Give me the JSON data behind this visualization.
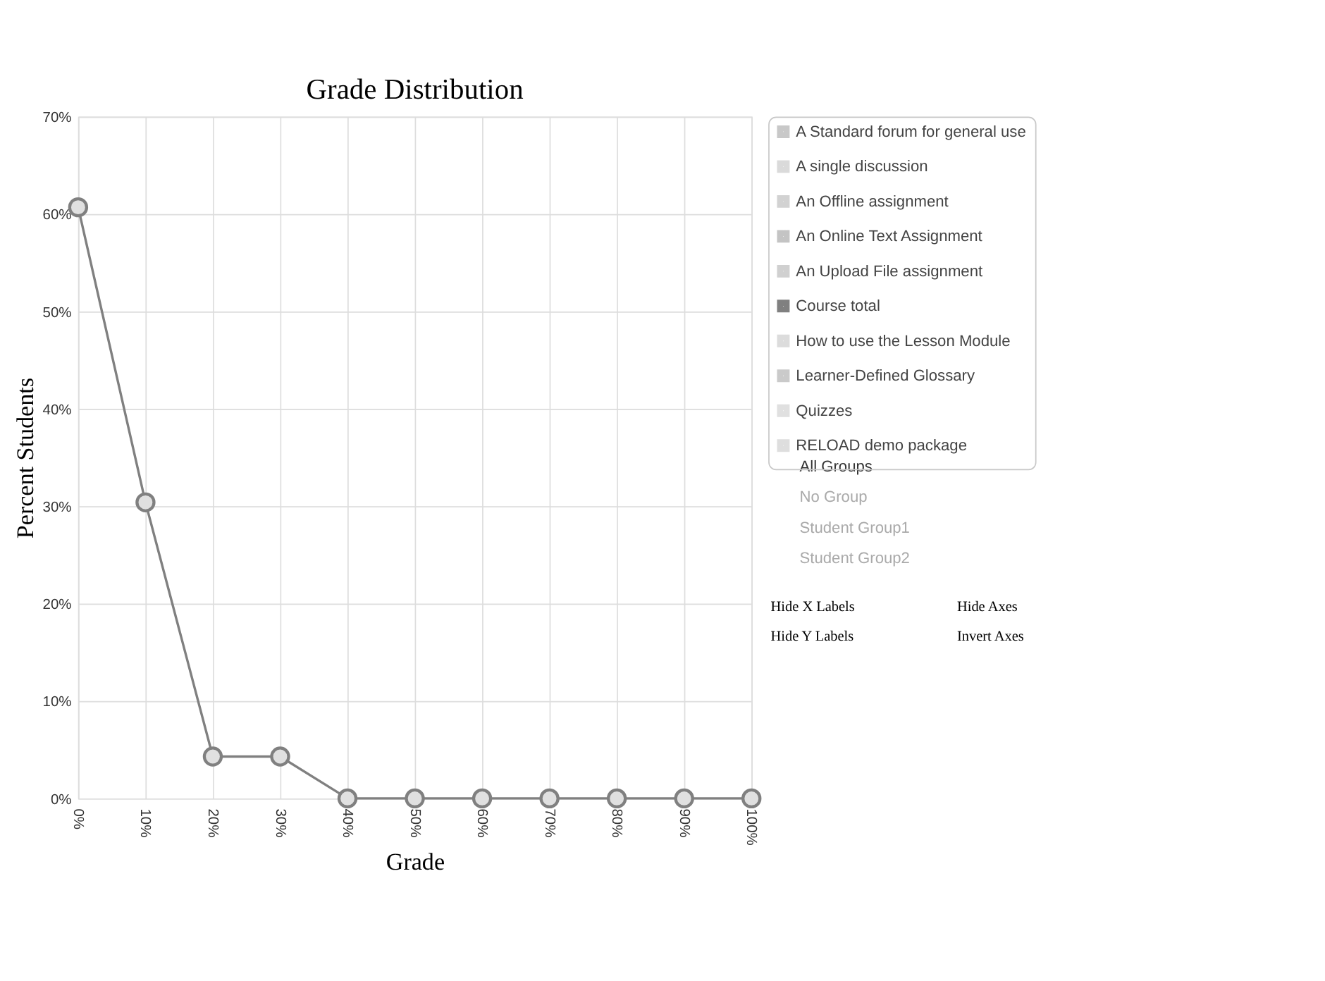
{
  "chart_data": {
    "type": "line",
    "title": "Grade Distribution",
    "xlabel": "Grade",
    "ylabel": "Percent Students",
    "categories": [
      "0%",
      "10%",
      "20%",
      "30%",
      "40%",
      "50%",
      "60%",
      "70%",
      "80%",
      "90%",
      "100%"
    ],
    "series": [
      {
        "name": "A Standard forum for general use",
        "color": "#c8c8c8",
        "values": [
          null,
          null,
          null,
          null,
          null,
          null,
          null,
          null,
          null,
          null,
          null
        ]
      },
      {
        "name": "A single discussion",
        "color": "#dadada",
        "values": [
          null,
          null,
          null,
          null,
          null,
          null,
          null,
          null,
          null,
          null,
          null
        ]
      },
      {
        "name": "An Offline assignment",
        "color": "#d2d2d2",
        "values": [
          null,
          null,
          null,
          null,
          null,
          null,
          null,
          null,
          null,
          null,
          null
        ]
      },
      {
        "name": "An Online Text Assignment",
        "color": "#c4c4c4",
        "values": [
          null,
          null,
          null,
          null,
          null,
          null,
          null,
          null,
          null,
          null,
          null
        ]
      },
      {
        "name": "An Upload File assignment",
        "color": "#d0d0d0",
        "values": [
          null,
          null,
          null,
          null,
          null,
          null,
          null,
          null,
          null,
          null,
          null
        ]
      },
      {
        "name": "Course total",
        "color": "#808080",
        "values": [
          60.7,
          30.4,
          4.3,
          4.3,
          0,
          0,
          0,
          0,
          0,
          0,
          0
        ]
      },
      {
        "name": "How to use the Lesson Module",
        "color": "#dcdcdc",
        "values": [
          null,
          null,
          null,
          null,
          null,
          null,
          null,
          null,
          null,
          null,
          null
        ]
      },
      {
        "name": "Learner-Defined Glossary",
        "color": "#cacaca",
        "values": [
          null,
          null,
          null,
          null,
          null,
          null,
          null,
          null,
          null,
          null,
          null
        ]
      },
      {
        "name": "Quizzes",
        "color": "#e0e0e0",
        "values": [
          null,
          null,
          null,
          null,
          null,
          null,
          null,
          null,
          null,
          null,
          null
        ]
      },
      {
        "name": "RELOAD demo package",
        "color": "#dedede",
        "values": [
          null,
          null,
          null,
          null,
          null,
          null,
          null,
          null,
          null,
          null,
          null
        ]
      }
    ],
    "ylim": [
      0,
      70
    ],
    "yticks": [
      {
        "value": 0,
        "label": "0%"
      },
      {
        "value": 10,
        "label": "10%"
      },
      {
        "value": 20,
        "label": "20%"
      },
      {
        "value": 30,
        "label": "30%"
      },
      {
        "value": 40,
        "label": "40%"
      },
      {
        "value": 50,
        "label": "50%"
      },
      {
        "value": 60,
        "label": "60%"
      },
      {
        "value": 70,
        "label": "70%"
      }
    ],
    "grid": true,
    "legend": "top right",
    "marker": "circle",
    "line_style": "solid",
    "annotations": [
      "All Groups",
      "No Group",
      "Student Group1",
      "Student Group2",
      "Hide X Labels",
      "Hide Axes",
      "Hide Y Labels",
      "Invert Axes"
    ]
  }
}
